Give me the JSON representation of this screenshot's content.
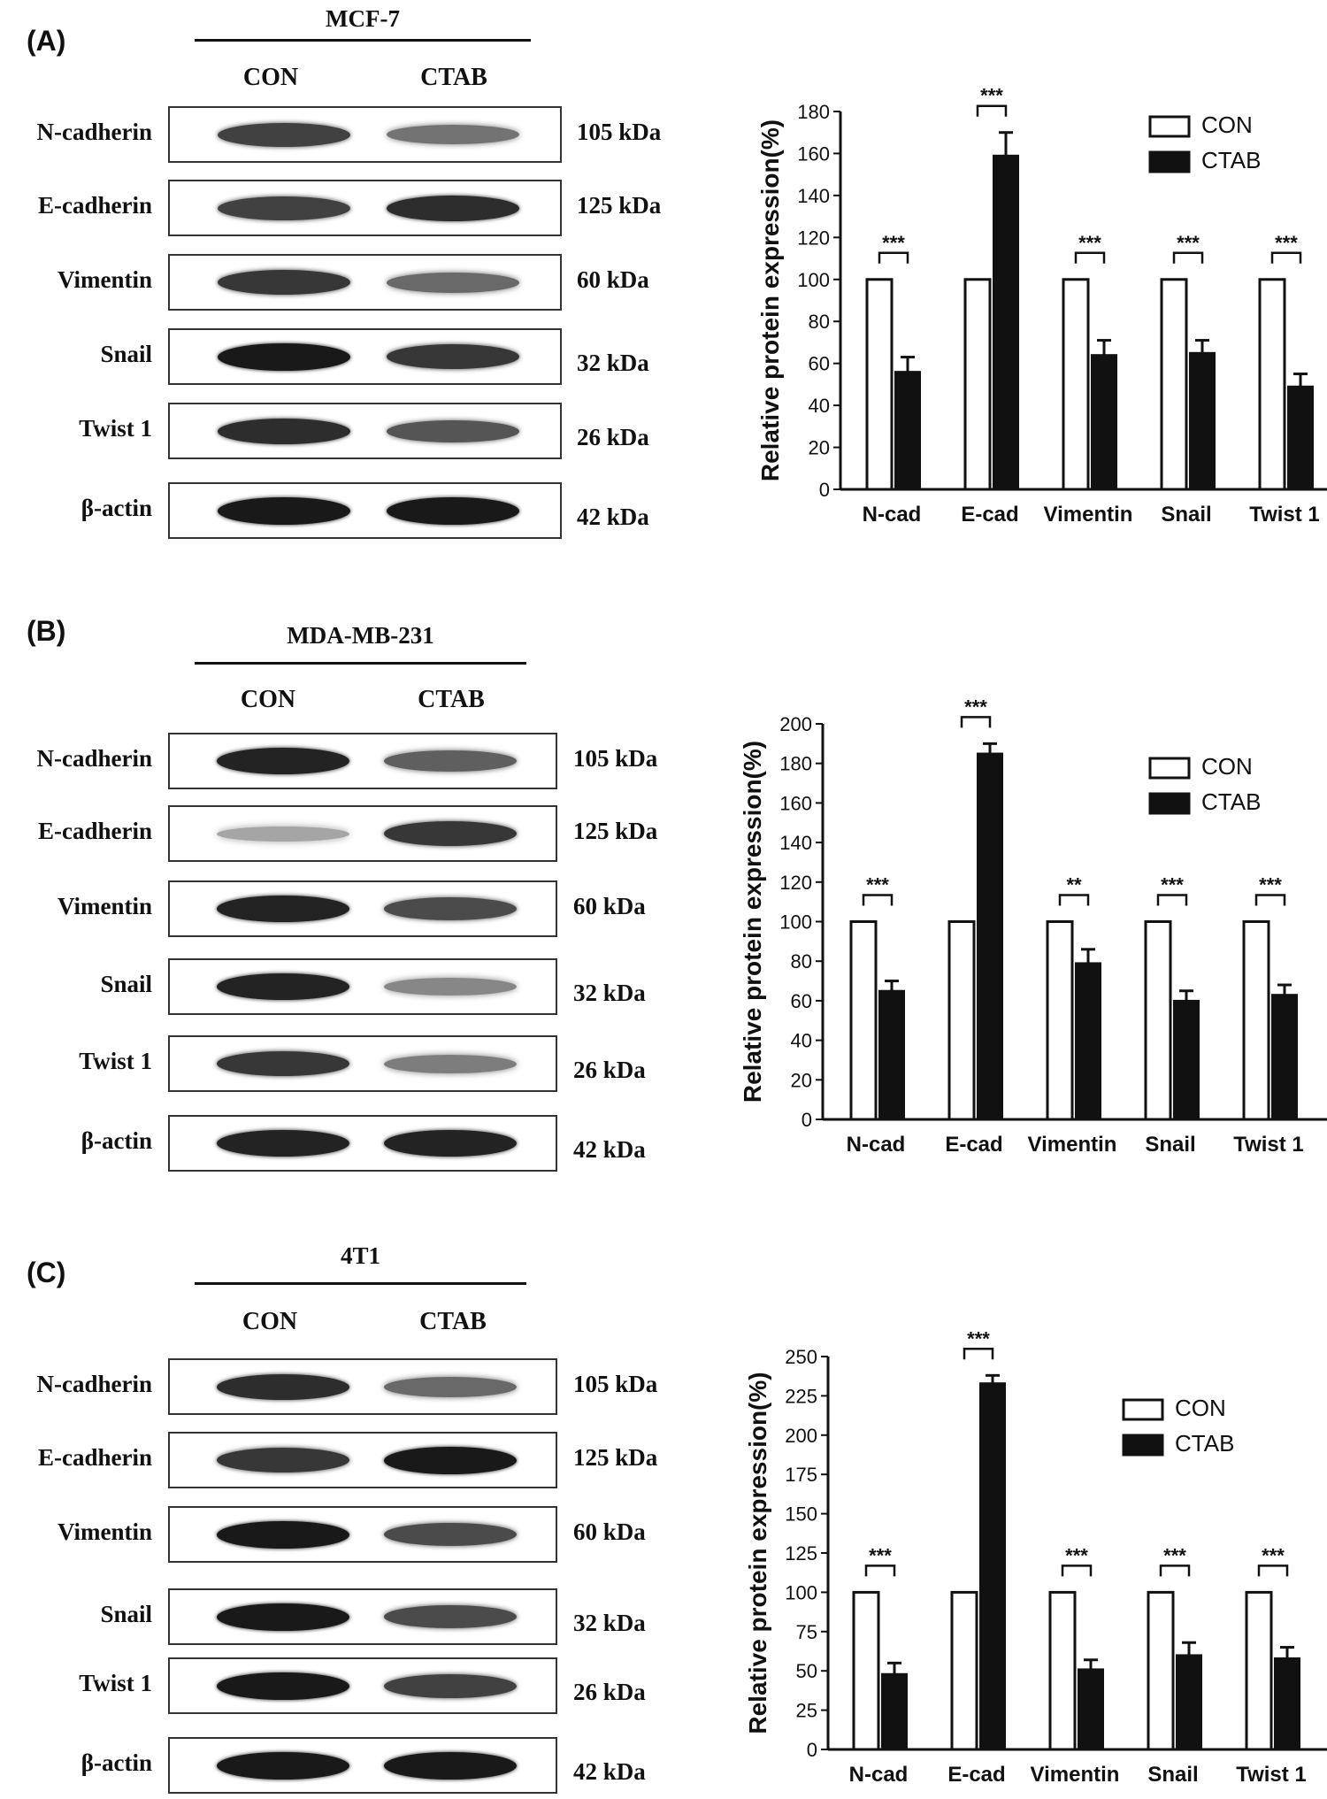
{
  "panels": [
    {
      "label": "(A)",
      "cell_line": "MCF-7",
      "columns": [
        "CON",
        "CTAB"
      ],
      "blots": [
        {
          "protein": "N-cadherin",
          "kda": "105 kDa",
          "con": 0.75,
          "ctab": 0.5
        },
        {
          "protein": "E-cadherin",
          "kda": "125 kDa",
          "con": 0.75,
          "ctab": 0.85
        },
        {
          "protein": "Vimentin",
          "kda": "60 kDa",
          "con": 0.8,
          "ctab": 0.55
        },
        {
          "protein": "Snail",
          "kda": "32 kDa",
          "con": 0.95,
          "ctab": 0.8
        },
        {
          "protein": "Twist 1",
          "kda": "26 kDa",
          "con": 0.85,
          "ctab": 0.65
        },
        {
          "protein": "β-actin",
          "kda": "42 kDa",
          "con": 0.95,
          "ctab": 0.95
        }
      ]
    },
    {
      "label": "(B)",
      "cell_line": "MDA-MB-231",
      "columns": [
        "CON",
        "CTAB"
      ],
      "blots": [
        {
          "protein": "N-cadherin",
          "kda": "105 kDa",
          "con": 0.9,
          "ctab": 0.6
        },
        {
          "protein": "E-cadherin",
          "kda": "125 kDa",
          "con": 0.25,
          "ctab": 0.8
        },
        {
          "protein": "Vimentin",
          "kda": "60 kDa",
          "con": 0.9,
          "ctab": 0.7
        },
        {
          "protein": "Snail",
          "kda": "32 kDa",
          "con": 0.9,
          "ctab": 0.4
        },
        {
          "protein": "Twist 1",
          "kda": "26 kDa",
          "con": 0.8,
          "ctab": 0.45
        },
        {
          "protein": "β-actin",
          "kda": "42 kDa",
          "con": 0.9,
          "ctab": 0.9
        }
      ]
    },
    {
      "label": "(C)",
      "cell_line": "4T1",
      "columns": [
        "CON",
        "CTAB"
      ],
      "blots": [
        {
          "protein": "N-cadherin",
          "kda": "105 kDa",
          "con": 0.85,
          "ctab": 0.55
        },
        {
          "protein": "E-cadherin",
          "kda": "125 kDa",
          "con": 0.8,
          "ctab": 0.95
        },
        {
          "protein": "Vimentin",
          "kda": "60 kDa",
          "con": 0.95,
          "ctab": 0.7
        },
        {
          "protein": "Snail",
          "kda": "32 kDa",
          "con": 0.95,
          "ctab": 0.7
        },
        {
          "protein": "Twist 1",
          "kda": "26 kDa",
          "con": 0.95,
          "ctab": 0.75
        },
        {
          "protein": "β-actin",
          "kda": "42 kDa",
          "con": 0.95,
          "ctab": 0.95
        }
      ]
    }
  ],
  "chart_data": [
    {
      "type": "bar",
      "panel": "(A)",
      "ylabel": "Relative protein expression(%)",
      "xlabel": "",
      "ylim": [
        0,
        180
      ],
      "yticks": [
        0,
        20,
        40,
        60,
        80,
        100,
        120,
        140,
        160,
        180
      ],
      "categories": [
        "N-cad",
        "E-cad",
        "Vimentin",
        "Snail",
        "Twist 1"
      ],
      "series": [
        {
          "name": "CON",
          "values": [
            100,
            100,
            100,
            100,
            100
          ],
          "errors": [
            0,
            0,
            0,
            0,
            0
          ]
        },
        {
          "name": "CTAB",
          "values": [
            56,
            159,
            64,
            65,
            49
          ],
          "errors": [
            7,
            11,
            7,
            6,
            6
          ]
        }
      ],
      "significance": [
        "***",
        "***",
        "***",
        "***",
        "***"
      ],
      "legend": "top-right"
    },
    {
      "type": "bar",
      "panel": "(B)",
      "ylabel": "Relative protein expression(%)",
      "xlabel": "",
      "ylim": [
        0,
        200
      ],
      "yticks": [
        0,
        20,
        40,
        60,
        80,
        100,
        120,
        140,
        160,
        180,
        200
      ],
      "categories": [
        "N-cad",
        "E-cad",
        "Vimentin",
        "Snail",
        "Twist 1"
      ],
      "series": [
        {
          "name": "CON",
          "values": [
            100,
            100,
            100,
            100,
            100
          ],
          "errors": [
            0,
            0,
            0,
            0,
            0
          ]
        },
        {
          "name": "CTAB",
          "values": [
            65,
            185,
            79,
            60,
            63
          ],
          "errors": [
            5,
            5,
            7,
            5,
            5
          ]
        }
      ],
      "significance": [
        "***",
        "***",
        "**",
        "***",
        "***"
      ],
      "legend": "top-right"
    },
    {
      "type": "bar",
      "panel": "(C)",
      "ylabel": "Relative protein expression(%)",
      "xlabel": "",
      "ylim": [
        0,
        250
      ],
      "yticks": [
        0,
        25,
        50,
        75,
        100,
        125,
        150,
        175,
        200,
        225,
        250
      ],
      "categories": [
        "N-cad",
        "E-cad",
        "Vimentin",
        "Snail",
        "Twist 1"
      ],
      "series": [
        {
          "name": "CON",
          "values": [
            100,
            100,
            100,
            100,
            100
          ],
          "errors": [
            0,
            0,
            0,
            0,
            0
          ]
        },
        {
          "name": "CTAB",
          "values": [
            48,
            233,
            51,
            60,
            58
          ],
          "errors": [
            7,
            5,
            6,
            8,
            7
          ]
        }
      ],
      "significance": [
        "***",
        "***",
        "***",
        "***",
        "***"
      ],
      "legend": "top-right"
    }
  ]
}
